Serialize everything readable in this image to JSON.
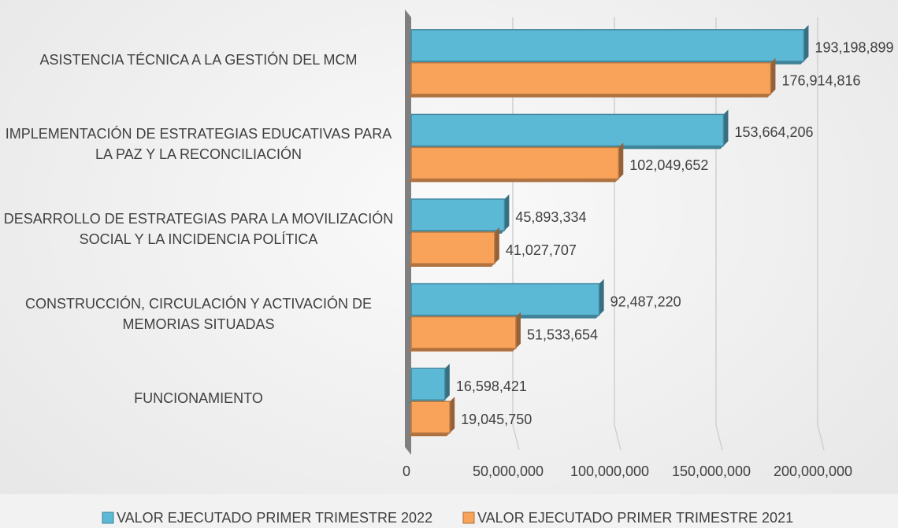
{
  "chart_data": {
    "type": "bar",
    "orientation": "horizontal",
    "categories": [
      "ASISTENCIA TÉCNICA A LA GESTIÓN DEL MCM",
      "IMPLEMENTACIÓN DE ESTRATEGIAS EDUCATIVAS PARA LA PAZ Y LA RECONCILIACIÓN",
      "DESARROLLO DE ESTRATEGIAS PARA LA MOVILIZACIÓN SOCIAL Y LA INCIDENCIA POLÍTICA",
      "CONSTRUCCIÓN, CIRCULACIÓN Y ACTIVACIÓN DE MEMORIAS SITUADAS",
      "FUNCIONAMIENTO"
    ],
    "series": [
      {
        "name": "VALOR EJECUTADO PRIMER TRIMESTRE 2022",
        "color": "#5bb9d6",
        "values": [
          193198899,
          153664206,
          45893334,
          92487220,
          16598421
        ],
        "value_labels": [
          "193,198,899",
          "153,664,206",
          "45,893,334",
          "92,487,220",
          "16,598,421"
        ]
      },
      {
        "name": "VALOR EJECUTADO PRIMER TRIMESTRE 2021",
        "color": "#f9a25a",
        "values": [
          176914816,
          102049652,
          41027707,
          51533654,
          19045750
        ],
        "value_labels": [
          "176,914,816",
          "102,049,652",
          "41,027,707",
          "51,533,654",
          "19,045,750"
        ]
      }
    ],
    "xlim": [
      0,
      200000000
    ],
    "xticks": [
      0,
      {
        "value": 50000000,
        "label": "50,000,000"
      },
      {
        "value": 100000000,
        "label": "100,000,000"
      },
      {
        "value": 150000000,
        "label": "150,000,000"
      },
      {
        "value": 200000000,
        "label": "200,000,000"
      }
    ],
    "grid": true,
    "legend": "bottom"
  }
}
